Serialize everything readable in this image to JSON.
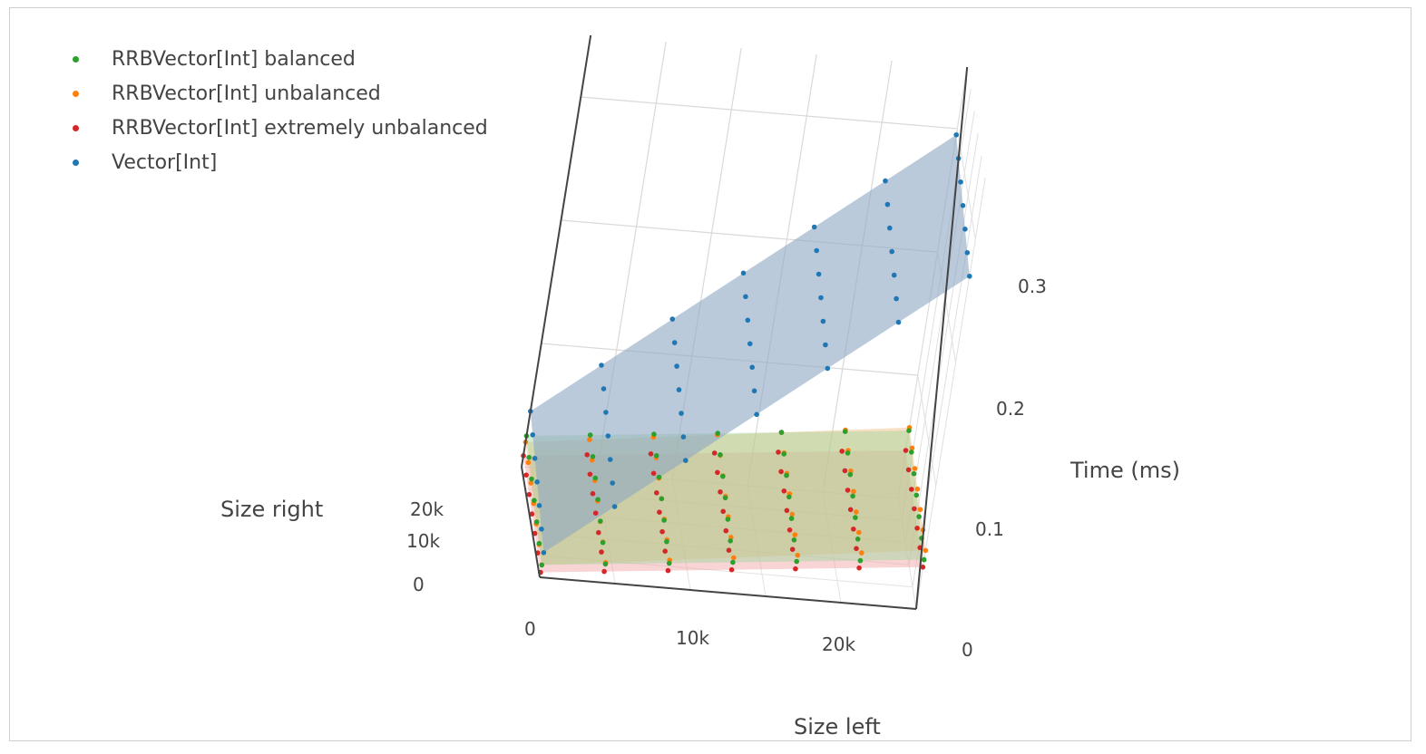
{
  "chart_data": {
    "type": "scatter",
    "subtype": "3d-surface-with-markers",
    "xlabel": "Size left",
    "ylabel": "Size right",
    "zlabel": "Time (ms)",
    "x_ticks": [
      "0",
      "10k",
      "20k"
    ],
    "y_ticks": [
      "0",
      "10k",
      "20k"
    ],
    "z_ticks": [
      "0",
      "0.1",
      "0.2",
      "0.3"
    ],
    "xlim": [
      0,
      25000
    ],
    "ylim": [
      0,
      25000
    ],
    "zlim": [
      0,
      0.35
    ],
    "grid": true,
    "legend_position": "top-left",
    "grid_x": [
      0,
      5000,
      10000,
      15000,
      20000,
      25000
    ],
    "grid_y": [
      0,
      5000,
      10000,
      15000,
      20000,
      25000
    ],
    "series": [
      {
        "name": "RRBVector[Int] balanced",
        "color": "#2ca02c",
        "surface_color": "#9ed89e",
        "base": 0.01,
        "slope_left": 1.2e-06,
        "slope_right": 6e-07
      },
      {
        "name": "RRBVector[Int] unbalanced",
        "color": "#ff7f0e",
        "surface_color": "#f2b77a",
        "base": 0.01,
        "slope_left": 1.5e-06,
        "slope_right": 4e-07
      },
      {
        "name": "RRBVector[Int] extremely unbalanced",
        "color": "#d62728",
        "surface_color": "#f0a0a0",
        "base": 0.004,
        "slope_left": 1.2e-06,
        "slope_right": 2e-07
      },
      {
        "name": "Vector[Int]",
        "color": "#1f77b4",
        "surface_color": "#8fa9c4",
        "base": 0.02,
        "slope_left": 1e-05,
        "slope_right": 1e-06
      }
    ]
  }
}
